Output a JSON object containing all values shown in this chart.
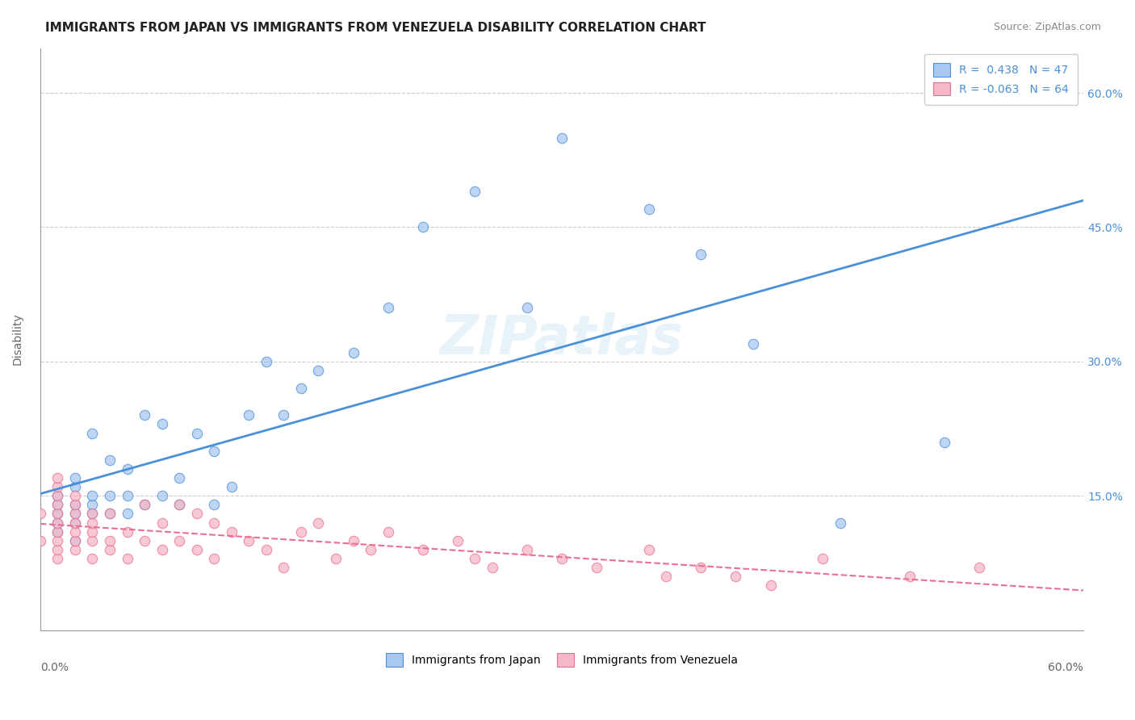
{
  "title": "IMMIGRANTS FROM JAPAN VS IMMIGRANTS FROM VENEZUELA DISABILITY CORRELATION CHART",
  "source": "Source: ZipAtlas.com",
  "ylabel": "Disability",
  "xlabel_bottom_left": "0.0%",
  "xlabel_bottom_right": "60.0%",
  "xlim": [
    0.0,
    0.6
  ],
  "ylim": [
    0.0,
    0.65
  ],
  "yticks": [
    0.15,
    0.3,
    0.45,
    0.6
  ],
  "ytick_labels": [
    "15.0%",
    "30.0%",
    "45.0%",
    "60.0%"
  ],
  "watermark": "ZIPatlas",
  "legend_r1": "R =  0.438",
  "legend_n1": "N = 47",
  "legend_r2": "R = -0.063",
  "legend_n2": "N = 64",
  "japan_color": "#a8c8f0",
  "japan_line_color": "#4a90d9",
  "venezuela_color": "#f5b8c8",
  "venezuela_line_color": "#e87090",
  "background_color": "#ffffff",
  "grid_color": "#cccccc",
  "japan_x": [
    0.01,
    0.01,
    0.01,
    0.01,
    0.01,
    0.02,
    0.02,
    0.02,
    0.02,
    0.02,
    0.02,
    0.03,
    0.03,
    0.03,
    0.03,
    0.04,
    0.04,
    0.04,
    0.05,
    0.05,
    0.05,
    0.06,
    0.06,
    0.07,
    0.07,
    0.08,
    0.08,
    0.09,
    0.1,
    0.1,
    0.11,
    0.12,
    0.13,
    0.14,
    0.15,
    0.16,
    0.18,
    0.2,
    0.22,
    0.25,
    0.28,
    0.3,
    0.35,
    0.38,
    0.41,
    0.46,
    0.52
  ],
  "japan_y": [
    0.11,
    0.12,
    0.13,
    0.14,
    0.15,
    0.1,
    0.12,
    0.13,
    0.14,
    0.16,
    0.17,
    0.13,
    0.14,
    0.15,
    0.22,
    0.13,
    0.15,
    0.19,
    0.13,
    0.15,
    0.18,
    0.14,
    0.24,
    0.15,
    0.23,
    0.14,
    0.17,
    0.22,
    0.14,
    0.2,
    0.16,
    0.24,
    0.3,
    0.24,
    0.27,
    0.29,
    0.31,
    0.36,
    0.45,
    0.49,
    0.36,
    0.55,
    0.47,
    0.42,
    0.32,
    0.12,
    0.21
  ],
  "venezuela_x": [
    0.0,
    0.0,
    0.01,
    0.01,
    0.01,
    0.01,
    0.01,
    0.01,
    0.01,
    0.01,
    0.01,
    0.01,
    0.02,
    0.02,
    0.02,
    0.02,
    0.02,
    0.02,
    0.02,
    0.03,
    0.03,
    0.03,
    0.03,
    0.03,
    0.04,
    0.04,
    0.04,
    0.05,
    0.05,
    0.06,
    0.06,
    0.07,
    0.07,
    0.08,
    0.08,
    0.09,
    0.09,
    0.1,
    0.1,
    0.11,
    0.12,
    0.13,
    0.14,
    0.15,
    0.16,
    0.17,
    0.18,
    0.19,
    0.2,
    0.22,
    0.24,
    0.25,
    0.26,
    0.28,
    0.3,
    0.32,
    0.35,
    0.36,
    0.38,
    0.4,
    0.42,
    0.45,
    0.5,
    0.54
  ],
  "venezuela_y": [
    0.1,
    0.13,
    0.08,
    0.09,
    0.1,
    0.11,
    0.12,
    0.13,
    0.14,
    0.15,
    0.16,
    0.17,
    0.09,
    0.1,
    0.11,
    0.12,
    0.13,
    0.14,
    0.15,
    0.08,
    0.1,
    0.11,
    0.12,
    0.13,
    0.09,
    0.1,
    0.13,
    0.08,
    0.11,
    0.1,
    0.14,
    0.09,
    0.12,
    0.1,
    0.14,
    0.09,
    0.13,
    0.08,
    0.12,
    0.11,
    0.1,
    0.09,
    0.07,
    0.11,
    0.12,
    0.08,
    0.1,
    0.09,
    0.11,
    0.09,
    0.1,
    0.08,
    0.07,
    0.09,
    0.08,
    0.07,
    0.09,
    0.06,
    0.07,
    0.06,
    0.05,
    0.08,
    0.06,
    0.07
  ],
  "title_fontsize": 11,
  "axis_label_fontsize": 10,
  "tick_fontsize": 10,
  "source_fontsize": 9,
  "watermark_fontsize": 48,
  "watermark_color": "#d0e8f5",
  "watermark_alpha": 0.5
}
